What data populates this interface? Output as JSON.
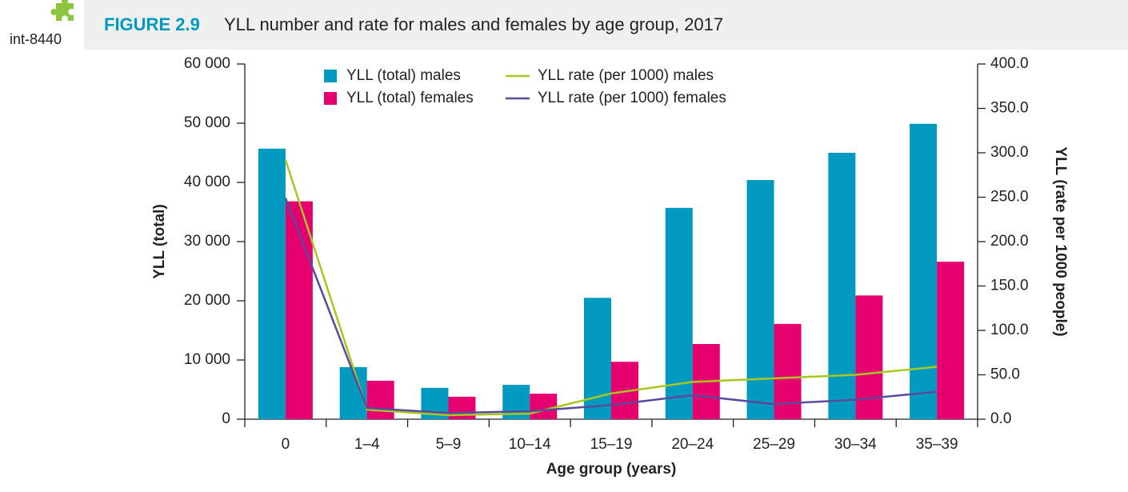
{
  "header": {
    "code": "int-8440",
    "figure": "FIGURE 2.9",
    "title": "YLL number and rate for males and females by age group, 2017"
  },
  "chart_data": {
    "type": "bar",
    "xlabel": "Age group (years)",
    "ylabel": "YLL (total)",
    "y2label": "YLL (rate per 1000 people)",
    "categories": [
      "0",
      "1–4",
      "5–9",
      "10–14",
      "15–19",
      "20–24",
      "25–29",
      "30–34",
      "35–39"
    ],
    "series": [
      {
        "name": "YLL (total) males",
        "type": "bar",
        "color": "#0099c0",
        "values": [
          45700,
          8800,
          5300,
          5800,
          20500,
          35700,
          40400,
          45000,
          49900
        ]
      },
      {
        "name": "YLL (total) females",
        "type": "bar",
        "color": "#e6006f",
        "values": [
          36800,
          6500,
          3800,
          4300,
          9700,
          12700,
          16100,
          20900,
          26600
        ]
      },
      {
        "name": "YLL rate (per 1000) males",
        "type": "line",
        "axis": "y2",
        "color": "#a8c820",
        "values": [
          292,
          10.8,
          4.5,
          6.3,
          29,
          42,
          46,
          50,
          59
        ]
      },
      {
        "name": "YLL rate (per 1000) females",
        "type": "line",
        "axis": "y2",
        "color": "#5a4a9c",
        "values": [
          249,
          12.6,
          7,
          9,
          16,
          27,
          17,
          22,
          31
        ]
      }
    ],
    "ylim": [
      0,
      60000
    ],
    "yticks": [
      0,
      {
        "value": 10000,
        "label": "10 000"
      },
      {
        "value": 20000,
        "label": "20 000"
      },
      {
        "value": 30000,
        "label": "30 000"
      },
      {
        "value": 40000,
        "label": "40 000"
      },
      {
        "value": 50000,
        "label": "50 000"
      },
      {
        "value": 60000,
        "label": "60 000"
      }
    ],
    "y2lim": [
      0,
      400
    ],
    "y2ticks": [
      {
        "value": 0,
        "label": "0.0"
      },
      {
        "value": 50,
        "label": "50.0"
      },
      {
        "value": 100,
        "label": "100.0"
      },
      {
        "value": 150,
        "label": "150.0"
      },
      {
        "value": 200,
        "label": "200.0"
      },
      {
        "value": 250,
        "label": "250.0"
      },
      {
        "value": 300,
        "label": "300.0"
      },
      {
        "value": 350,
        "label": "350.0"
      },
      {
        "value": 400,
        "label": "400.0"
      }
    ]
  }
}
